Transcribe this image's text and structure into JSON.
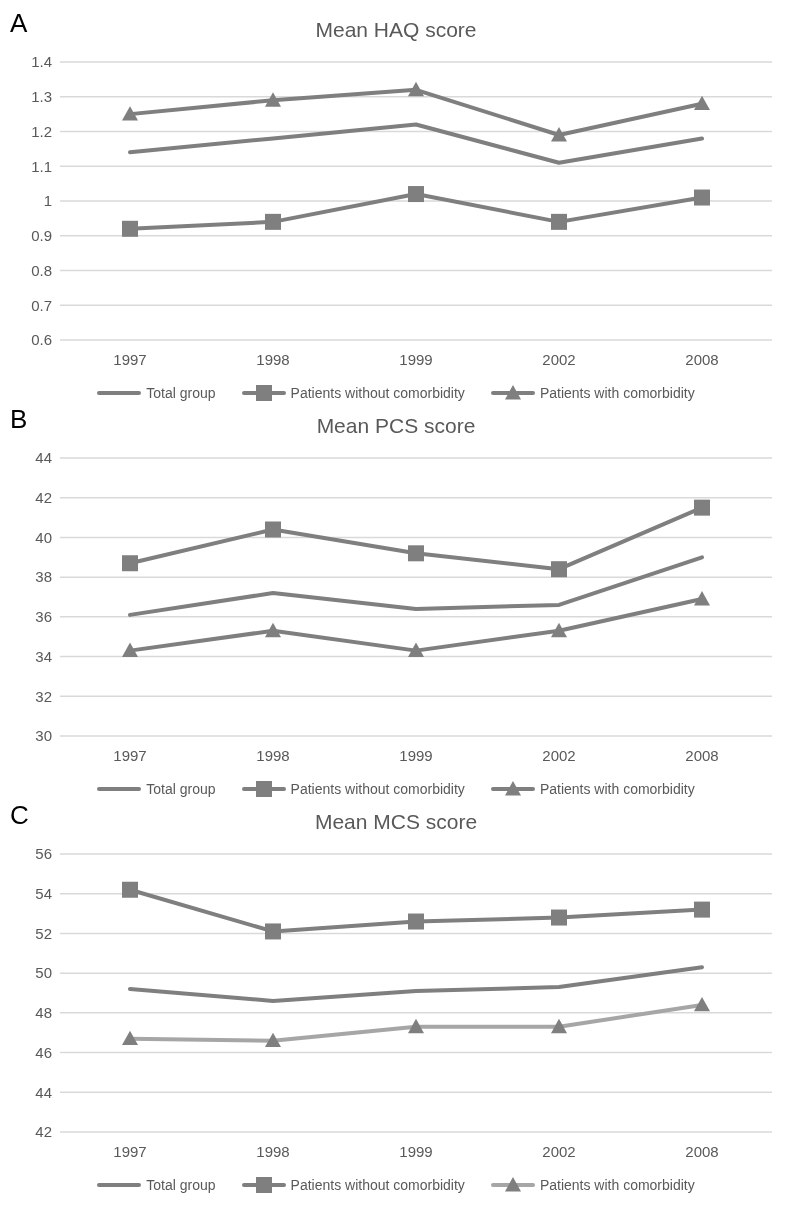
{
  "chart_data": [
    {
      "type": "line",
      "title": "Mean HAQ score",
      "annotations": [
        "A"
      ],
      "categories": [
        "1997",
        "1998",
        "1999",
        "2002",
        "2008"
      ],
      "ylim": [
        0.6,
        1.4
      ],
      "yticks": [
        0.6,
        0.7,
        0.8,
        0.9,
        1,
        1.1,
        1.2,
        1.3,
        1.4
      ],
      "grid": "y",
      "legend": "bottom",
      "line_style": "solid",
      "series": [
        {
          "name": "Total group",
          "color": "#7f7f7f",
          "marker": "none",
          "values": [
            1.14,
            1.18,
            1.22,
            1.11,
            1.18
          ]
        },
        {
          "name": "Patients without comorbidity",
          "color": "#7f7f7f",
          "marker": "square",
          "values": [
            0.92,
            0.94,
            1.02,
            0.94,
            1.01
          ]
        },
        {
          "name": "Patients with comorbidity",
          "color": "#7f7f7f",
          "marker": "triangle",
          "values": [
            1.25,
            1.29,
            1.32,
            1.19,
            1.28
          ]
        }
      ]
    },
    {
      "type": "line",
      "title": "Mean PCS score",
      "annotations": [
        "B"
      ],
      "categories": [
        "1997",
        "1998",
        "1999",
        "2002",
        "2008"
      ],
      "ylim": [
        30,
        44
      ],
      "yticks": [
        30,
        32,
        34,
        36,
        38,
        40,
        42,
        44
      ],
      "grid": "y",
      "legend": "bottom",
      "line_style": "solid",
      "series": [
        {
          "name": "Total group",
          "color": "#7f7f7f",
          "marker": "none",
          "values": [
            36.1,
            37.2,
            36.4,
            36.6,
            39.0
          ]
        },
        {
          "name": "Patients without comorbidity",
          "color": "#7f7f7f",
          "marker": "square",
          "values": [
            38.7,
            40.4,
            39.2,
            38.4,
            41.5
          ]
        },
        {
          "name": "Patients with comorbidity",
          "color": "#7f7f7f",
          "marker": "triangle",
          "values": [
            34.3,
            35.3,
            34.3,
            35.3,
            36.9
          ]
        }
      ]
    },
    {
      "type": "line",
      "title": "Mean MCS score",
      "annotations": [
        "C"
      ],
      "categories": [
        "1997",
        "1998",
        "1999",
        "2002",
        "2008"
      ],
      "ylim": [
        42,
        56
      ],
      "yticks": [
        42,
        44,
        46,
        48,
        50,
        52,
        54,
        56
      ],
      "grid": "y",
      "legend": "bottom",
      "line_style": "solid",
      "series": [
        {
          "name": "Total group",
          "color": "#7f7f7f",
          "marker": "none",
          "values": [
            49.2,
            48.6,
            49.1,
            49.3,
            50.3
          ]
        },
        {
          "name": "Patients without comorbidity",
          "color": "#7f7f7f",
          "marker": "square",
          "values": [
            54.2,
            52.1,
            52.6,
            52.8,
            53.2
          ]
        },
        {
          "name": "Patients with comorbidity",
          "color": "#a6a6a6",
          "marker": "triangle",
          "values": [
            46.7,
            46.6,
            47.3,
            47.3,
            48.4
          ]
        }
      ]
    }
  ]
}
